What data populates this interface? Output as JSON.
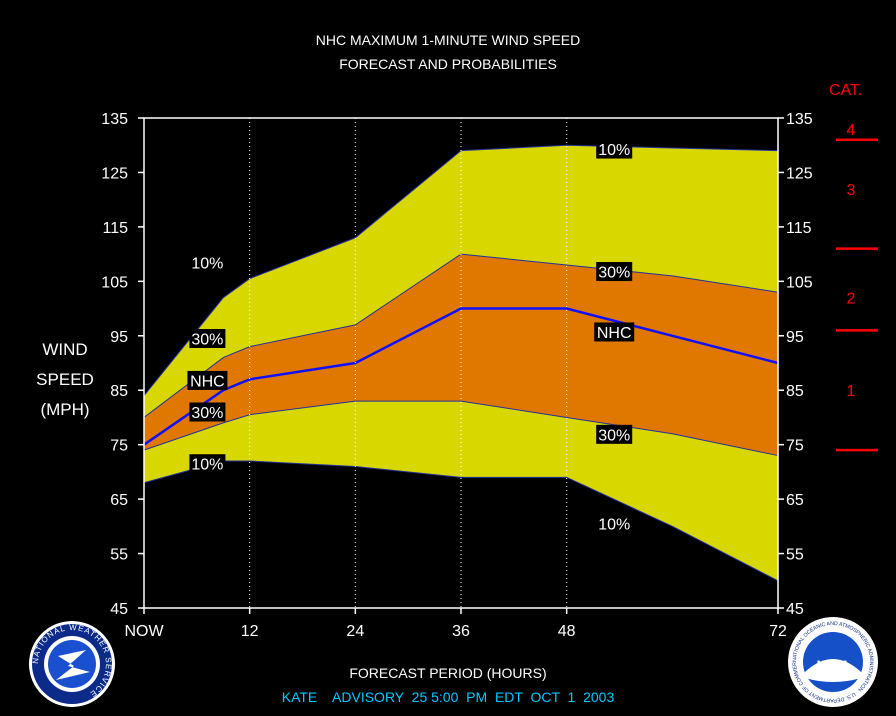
{
  "title_line1": "NHC MAXIMUM 1-MINUTE WIND SPEED",
  "title_line2": "FORECAST AND PROBABILITIES",
  "ylabel_line1": "WIND",
  "ylabel_line2": "SPEED",
  "ylabel_line3": "(MPH)",
  "xlabel": "FORECAST PERIOD (HOURS)",
  "advisory": "KATE    ADVISORY  25 5:00  PM  EDT  OCT  1  2003",
  "category_title": "CAT.",
  "category_labels": [
    "4",
    "3",
    "2",
    "1"
  ],
  "logos": {
    "left_text": "NATIONAL WEATHER SERVICE",
    "right_text": "NOAA",
    "right_ring_text": "NATIONAL OCEANIC AND ATMOSPHERIC ADMINISTRATION · U.S. DEPARTMENT OF COMMERCE"
  },
  "colors": {
    "background": "#000000",
    "band_10": "#d8d800",
    "band_30": "#e07800",
    "nhc_line": "#1010ff",
    "grid": "#ffffff",
    "category": "#ff0000",
    "advisory": "#00c8ff",
    "text": "#ffffff"
  },
  "chart_data": {
    "type": "area",
    "x_tick_labels": [
      "NOW",
      "12",
      "24",
      "36",
      "48",
      "72"
    ],
    "x_ticks": [
      0,
      12,
      24,
      36,
      48,
      72
    ],
    "xlim": [
      0,
      72
    ],
    "ylim": [
      45,
      135
    ],
    "y_ticks": [
      45,
      55,
      65,
      75,
      85,
      95,
      105,
      115,
      125,
      135
    ],
    "x": [
      0,
      9,
      12,
      24,
      36,
      48,
      60,
      72
    ],
    "series": [
      {
        "name": "10%",
        "values": [
          84,
          102,
          105.5,
          113,
          129,
          130,
          129.5,
          129
        ]
      },
      {
        "name": "30%",
        "values": [
          80,
          91,
          93,
          97,
          110,
          108,
          106,
          103
        ]
      },
      {
        "name": "NHC",
        "values": [
          75,
          85,
          87,
          90,
          100,
          100,
          95,
          90
        ]
      },
      {
        "name": "30%",
        "values": [
          74,
          79,
          80.5,
          83,
          83,
          80,
          77,
          73
        ]
      },
      {
        "name": "10%",
        "values": [
          68,
          72,
          72,
          71,
          69,
          69,
          60,
          50
        ]
      }
    ],
    "band_labels": [
      {
        "text": "10%",
        "x": 7.2,
        "y": 108.5
      },
      {
        "text": "30%",
        "x": 7.2,
        "y": 94.5
      },
      {
        "text": "NHC",
        "x": 7.2,
        "y": 86.8
      },
      {
        "text": "30%",
        "x": 7.2,
        "y": 81
      },
      {
        "text": "10%",
        "x": 7.2,
        "y": 71.5
      },
      {
        "text": "10%",
        "x": 53.4,
        "y": 129.3
      },
      {
        "text": "30%",
        "x": 53.4,
        "y": 106.8
      },
      {
        "text": "NHC",
        "x": 53.4,
        "y": 95.7
      },
      {
        "text": "30%",
        "x": 53.4,
        "y": 76.9
      },
      {
        "text": "10%",
        "x": 53.4,
        "y": 60.5
      }
    ],
    "category_thresholds": [
      74,
      96,
      111,
      131
    ],
    "category_label_values": [
      133,
      122,
      102,
      85
    ],
    "grid": "dotted vertical"
  }
}
